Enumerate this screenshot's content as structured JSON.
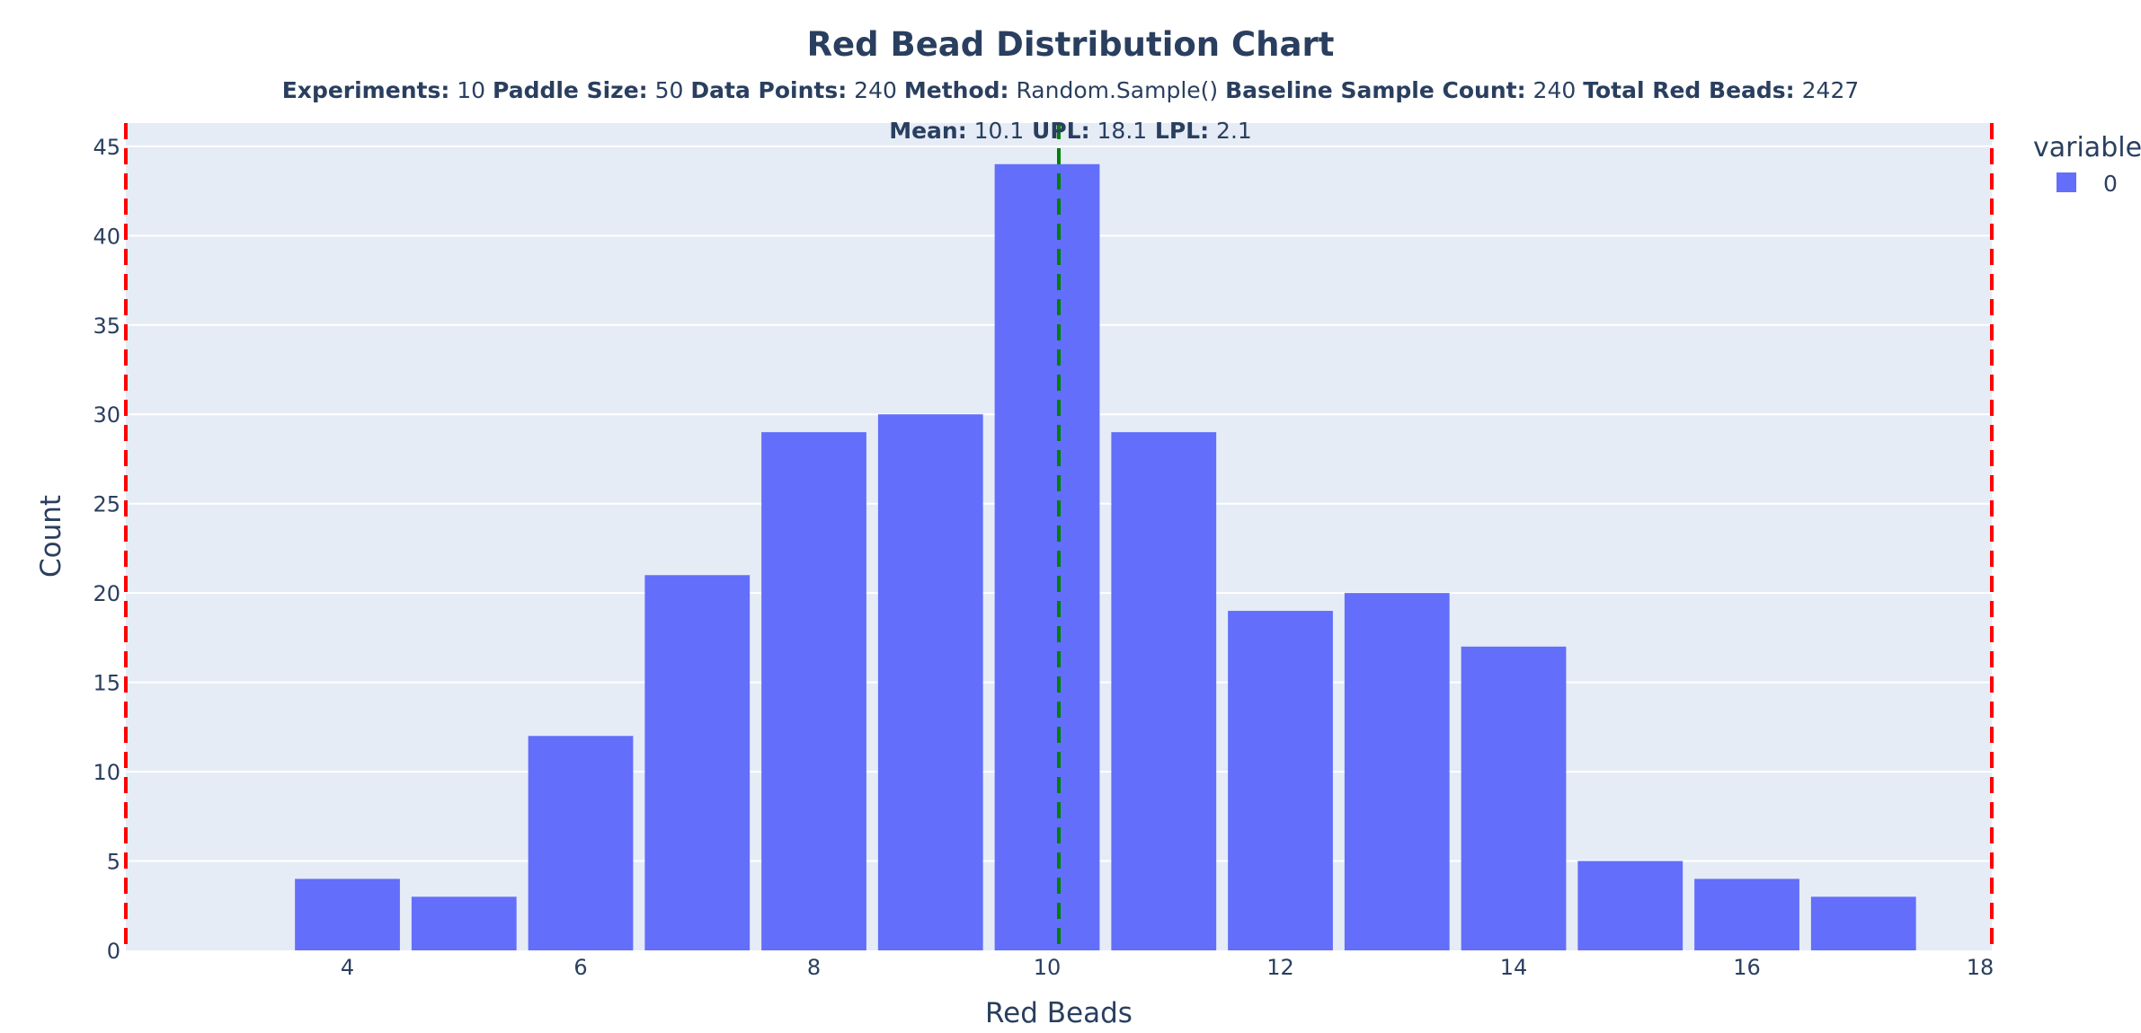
{
  "chart_data": {
    "type": "bar",
    "title": "Red Bead Distribution Chart",
    "subtitle": [
      {
        "label": "Experiments:",
        "value": "10"
      },
      {
        "label": "Paddle Size:",
        "value": "50"
      },
      {
        "label": "Data Points:",
        "value": "240"
      },
      {
        "label": "Method:",
        "value": "Random.Sample()"
      },
      {
        "label": "Baseline Sample Count:",
        "value": "240"
      },
      {
        "label": "Total Red Beads:",
        "value": "2427"
      }
    ],
    "stats": [
      {
        "label": "Mean:",
        "value": "10.1"
      },
      {
        "label": "UPL:",
        "value": "18.1"
      },
      {
        "label": "LPL:",
        "value": "2.1"
      }
    ],
    "xlabel": "Red Beads",
    "ylabel": "Count",
    "xlim": [
      2.1,
      18.1
    ],
    "ylim": [
      0,
      46.3
    ],
    "x_ticks": [
      4,
      6,
      8,
      10,
      12,
      14,
      16,
      18
    ],
    "y_ticks": [
      0,
      5,
      10,
      15,
      20,
      25,
      30,
      35,
      40,
      45
    ],
    "x": [
      4,
      5,
      6,
      7,
      8,
      9,
      10,
      11,
      12,
      13,
      14,
      15,
      16,
      17
    ],
    "series": [
      {
        "name": "0",
        "values": [
          4,
          3,
          12,
          21,
          29,
          30,
          44,
          29,
          19,
          20,
          17,
          5,
          4,
          3
        ],
        "color": "#636efa"
      }
    ],
    "reference_lines": [
      {
        "x": 10.1,
        "color": "#008000",
        "style": "dashed"
      },
      {
        "x": 18.1,
        "color": "#ff0000",
        "style": "dashed"
      },
      {
        "x": 2.1,
        "color": "#ff0000",
        "style": "dashed"
      }
    ],
    "legend": {
      "title": "variable",
      "position": "top-right"
    },
    "grid": true,
    "plot_background": "#e5ecf6"
  }
}
